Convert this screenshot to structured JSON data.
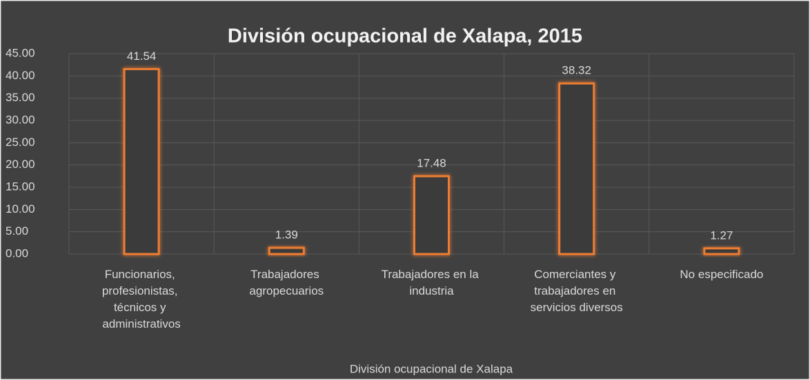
{
  "chart_data": {
    "type": "bar",
    "title": "División ocupacional de Xalapa, 2015",
    "x_label": "División ocupacional de Xalapa",
    "categories": [
      "Funcionarios, profesionistas, técnicos y administrativos",
      "Trabajadores agropecuarios",
      "Trabajadores en la industria",
      "Comerciantes y trabajadores en servicios diversos",
      "No especificado"
    ],
    "values": [
      41.54,
      1.39,
      17.48,
      38.32,
      1.27
    ],
    "color": "#ed7d31",
    "ylim": [
      0,
      45
    ],
    "yticks": [
      {
        "value": 0,
        "label": "0.00"
      },
      {
        "value": 5,
        "label": "5.00"
      },
      {
        "value": 10,
        "label": "10.00"
      },
      {
        "value": 15,
        "label": "15.00"
      },
      {
        "value": 20,
        "label": "20.00"
      },
      {
        "value": 25,
        "label": "25.00"
      },
      {
        "value": 30,
        "label": "30.00"
      },
      {
        "value": 35,
        "label": "35.00"
      },
      {
        "value": 40,
        "label": "40.00"
      },
      {
        "value": 45,
        "label": "45.00"
      }
    ],
    "grid": true
  }
}
